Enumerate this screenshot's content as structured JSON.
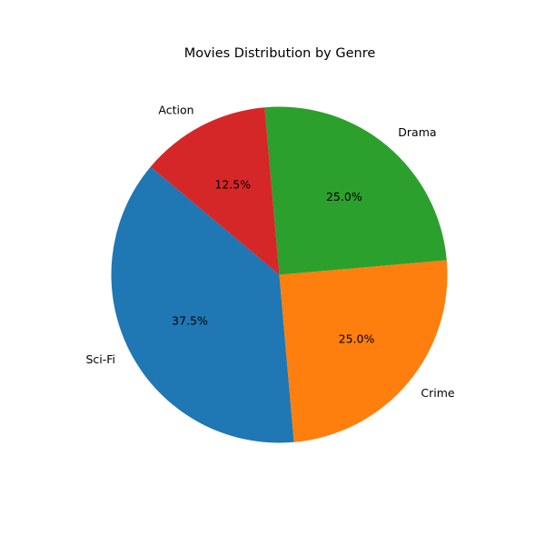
{
  "chart_data": {
    "type": "pie",
    "title": "Movies Distribution by Genre",
    "slices": [
      {
        "label": "Sci-Fi",
        "value": 37.5,
        "pct_label": "37.5%",
        "color": "#1f77b4"
      },
      {
        "label": "Crime",
        "value": 25.0,
        "pct_label": "25.0%",
        "color": "#ff7f0e"
      },
      {
        "label": "Drama",
        "value": 25.0,
        "pct_label": "25.0%",
        "color": "#2ca02c"
      },
      {
        "label": "Action",
        "value": 12.5,
        "pct_label": "12.5%",
        "color": "#d62728"
      }
    ],
    "start_angle_deg": 140,
    "direction": "counterclockwise",
    "legend": "none",
    "grid": false
  }
}
